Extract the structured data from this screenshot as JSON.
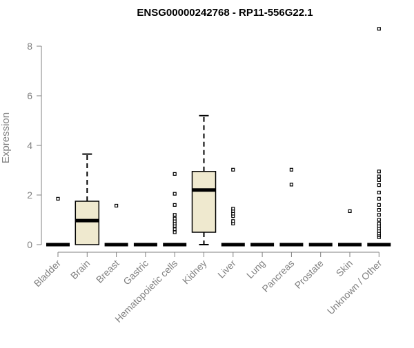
{
  "chart_data": {
    "type": "box",
    "title": "ENSG00000242768 - RP11-556G22.1",
    "xlabel": "",
    "ylabel": "Expression",
    "ylim": [
      0,
      8.7
    ],
    "yticks": [
      0,
      2,
      4,
      6,
      8
    ],
    "grid": false,
    "legend": "none",
    "box_fill": "#efe9cf",
    "box_stroke": "#000000",
    "axis_color": "#808080",
    "categories": [
      "Bladder",
      "Brain",
      "Breast",
      "Gastric",
      "Hematopoietic cells",
      "Kidney",
      "Liver",
      "Lung",
      "Pancreas",
      "Prostate",
      "Skin",
      "Unknown / Other"
    ],
    "boxes": [
      {
        "q1": 0,
        "median": 0,
        "q3": 0,
        "whisker_low": 0,
        "whisker_high": 0,
        "outliers": [
          1.85
        ]
      },
      {
        "q1": 0,
        "median": 0.97,
        "q3": 1.75,
        "whisker_low": 0,
        "whisker_high": 3.65,
        "outliers": []
      },
      {
        "q1": 0,
        "median": 0,
        "q3": 0,
        "whisker_low": 0,
        "whisker_high": 0,
        "outliers": [
          1.57
        ]
      },
      {
        "q1": 0,
        "median": 0,
        "q3": 0,
        "whisker_low": 0,
        "whisker_high": 0,
        "outliers": []
      },
      {
        "q1": 0,
        "median": 0,
        "q3": 0,
        "whisker_low": 0,
        "whisker_high": 0,
        "outliers": [
          0.5,
          0.62,
          0.75,
          0.85,
          0.95,
          1.05,
          1.2,
          1.6,
          2.05,
          2.85
        ]
      },
      {
        "q1": 0.5,
        "median": 2.2,
        "q3": 2.95,
        "whisker_low": 0,
        "whisker_high": 5.2,
        "outliers": []
      },
      {
        "q1": 0,
        "median": 0,
        "q3": 0,
        "whisker_low": 0,
        "whisker_high": 0,
        "outliers": [
          0.85,
          0.95,
          1.15,
          1.25,
          1.35,
          1.45,
          3.02
        ]
      },
      {
        "q1": 0,
        "median": 0,
        "q3": 0,
        "whisker_low": 0,
        "whisker_high": 0,
        "outliers": []
      },
      {
        "q1": 0,
        "median": 0,
        "q3": 0,
        "whisker_low": 0,
        "whisker_high": 0,
        "outliers": [
          2.42,
          3.02
        ]
      },
      {
        "q1": 0,
        "median": 0,
        "q3": 0,
        "whisker_low": 0,
        "whisker_high": 0,
        "outliers": []
      },
      {
        "q1": 0,
        "median": 0,
        "q3": 0,
        "whisker_low": 0,
        "whisker_high": 0,
        "outliers": [
          1.35
        ]
      },
      {
        "q1": 0,
        "median": 0,
        "q3": 0,
        "whisker_low": 0,
        "whisker_high": 0,
        "outliers": [
          0.3,
          0.38,
          0.45,
          0.55,
          0.65,
          0.75,
          0.85,
          1.0,
          1.2,
          1.4,
          1.6,
          1.85,
          2.1,
          2.4,
          2.6,
          2.75,
          2.95,
          8.7
        ]
      }
    ]
  }
}
